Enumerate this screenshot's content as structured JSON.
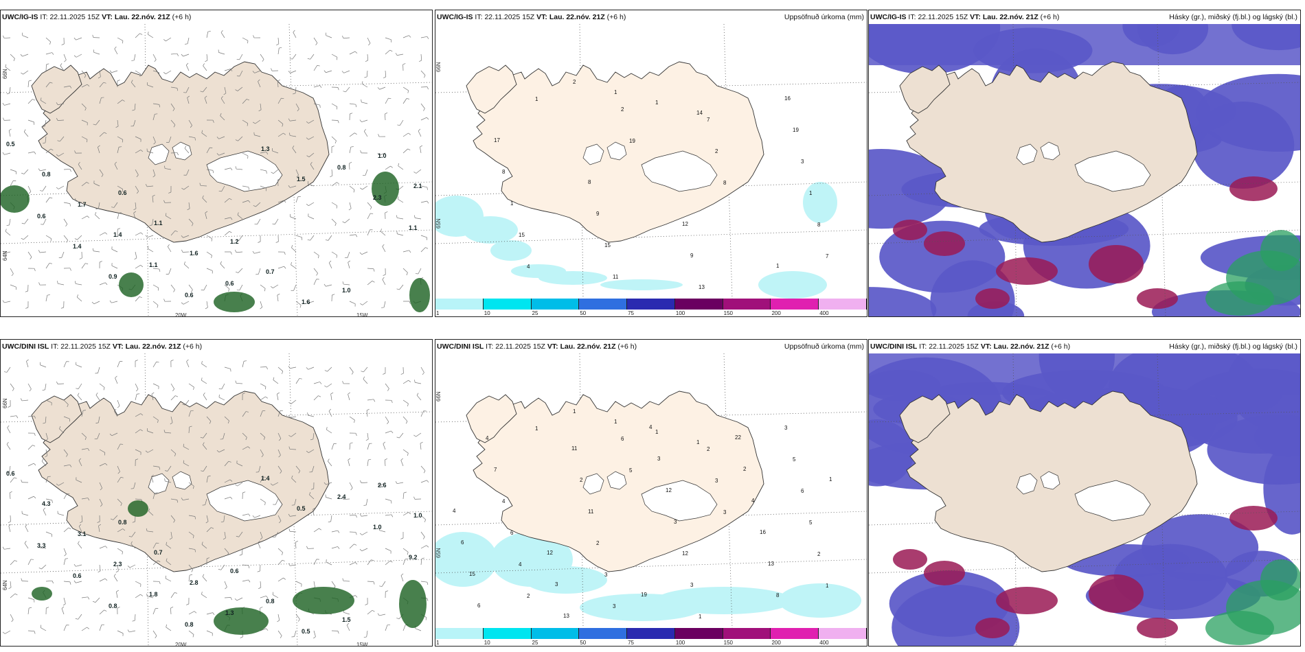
{
  "panels": [
    {
      "id": "p1",
      "row": 0,
      "col": 0,
      "model": "UWC/IG-IS",
      "it_label": "IT:",
      "it": "22.11.2025 15Z",
      "vt_label": "VT:",
      "vt": "Lau. 22.nóv. 21Z",
      "lead": "(+6",
      "lead2": "h)",
      "right": "",
      "type": "wind"
    },
    {
      "id": "p2",
      "row": 0,
      "col": 1,
      "model": "UWC/IG-IS",
      "it_label": "IT:",
      "it": "22.11.2025 15Z",
      "vt_label": "VT:",
      "vt": "Lau. 22.nóv. 21Z",
      "lead": "(+6 h)",
      "lead2": "",
      "right": "Uppsöfnuð úrkoma (mm)",
      "type": "precip"
    },
    {
      "id": "p3",
      "row": 0,
      "col": 2,
      "model": "UWC/IG-IS",
      "it_label": "IT:",
      "it": "22.11.2025 15Z",
      "vt_label": "VT:",
      "vt": "Lau. 22.nóv. 21Z",
      "lead": "(+6 h)",
      "lead2": "",
      "right": "Hásky (gr.), miðský (fj.bl.) og lágský (bl.)",
      "type": "cloud"
    },
    {
      "id": "p4",
      "row": 1,
      "col": 0,
      "model": "UWC/DINI ISL",
      "it_label": "IT:",
      "it": "22.11.2025 15Z",
      "vt_label": "VT:",
      "vt": "Lau. 22.nóv. 21Z",
      "lead": "(+6 h)",
      "lead2": "",
      "right": "",
      "type": "wind"
    },
    {
      "id": "p5",
      "row": 1,
      "col": 1,
      "model": "UWC/DINI ISL",
      "it_label": "IT:",
      "it": "22.11.2025 15Z",
      "vt_label": "VT:",
      "vt": "Lau. 22.nóv. 21Z",
      "lead": "(+6 h)",
      "lead2": "",
      "right": "Uppsöfnuð úrkoma (mm)",
      "type": "precip"
    },
    {
      "id": "p6",
      "row": 1,
      "col": 2,
      "model": "UWC/DINI ISL",
      "it_label": "IT:",
      "it": "22.11.2025 15Z",
      "vt_label": "VT:",
      "vt": "Lau. 22.nóv. 21Z",
      "lead": "(+6 h)",
      "lead2": "",
      "right": "Hásky (gr.), miðský (fj.bl.) og lágský (bl.)",
      "type": "cloud"
    }
  ],
  "axis_labels": {
    "lat66": "66N",
    "lat65": "65N",
    "lat64": "64N",
    "lon20": "20W",
    "lon15": "15W"
  },
  "colorbar": {
    "ticks": [
      "1",
      "10",
      "25",
      "50",
      "75",
      "100",
      "150",
      "200",
      "400"
    ],
    "colors": [
      "#b8f4f8",
      "#00e5f0",
      "#00bde8",
      "#2f6fe0",
      "#2a2ab0",
      "#6a0060",
      "#a0107a",
      "#e020b0",
      "#f0b0f0"
    ]
  },
  "colors": {
    "land": "#ede0d2",
    "land_precip": "#fdf1e4",
    "coast": "#333333",
    "low_cloud": "#5a58c8",
    "mid_cloud": "#9a1a55",
    "high_cloud": "#2aa060",
    "wind_green": "#1a6020"
  },
  "p1_values": [
    "0.5",
    "0.6",
    "1.2",
    "1.0",
    "0.8",
    "1.1",
    "0.7",
    "1.0",
    "1.7",
    "1.6",
    "1.6",
    "2.1",
    "1.4",
    "0.6",
    "0.8",
    "0.6",
    "1.1",
    "1.3",
    "2.3",
    "1.4",
    "0.6",
    "1.5",
    "1.1",
    "0.9"
  ],
  "p4_values": [
    "0.6",
    "0.8",
    "0.6",
    "1.5",
    "4.3",
    "0.7",
    "0.8",
    "2.6",
    "3.1",
    "2.8",
    "0.5",
    "1.0",
    "2.3",
    "1.3",
    "2.4",
    "3.3",
    "1.8",
    "1.4",
    "1.0",
    "0.6",
    "0.8",
    "0.5",
    "9.2",
    "0.8"
  ],
  "p2_values": [
    "2",
    "1",
    "1",
    "14",
    "7",
    "1",
    "19",
    "8",
    "8",
    "4",
    "2",
    "2",
    "1",
    "15",
    "11",
    "7",
    "3",
    "1",
    "15",
    "13",
    "19",
    "8",
    "9",
    "9",
    "16",
    "17",
    "8",
    "12",
    "1"
  ],
  "p5_values": [
    "1",
    "1",
    "1",
    "1",
    "1",
    "1",
    "5",
    "3",
    "2",
    "2",
    "6",
    "3",
    "5",
    "4",
    "3",
    "2",
    "6",
    "6",
    "3",
    "1",
    "5",
    "4",
    "2",
    "3",
    "3",
    "7",
    "11",
    "12",
    "8",
    "4",
    "2",
    "3",
    "13",
    "6",
    "11",
    "12",
    "16",
    "15",
    "13",
    "3",
    "4",
    "6",
    "3",
    "4",
    "2",
    "4",
    "12",
    "19",
    "22",
    "1"
  ]
}
